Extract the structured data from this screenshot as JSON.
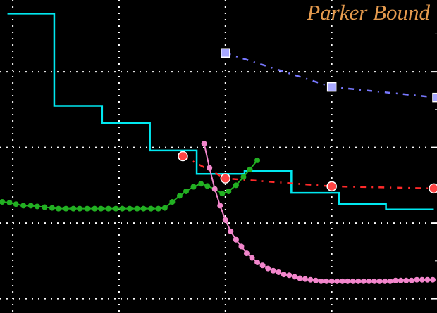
{
  "chart_data": {
    "type": "line",
    "title": "Parker Bound",
    "xlabel": "",
    "ylabel": "",
    "xlim": [
      -0.12,
      3.99
    ],
    "ylim": [
      -0.19,
      3.95
    ],
    "grid": true,
    "grid_x": [
      0,
      1,
      2,
      3
    ],
    "grid_y": [
      0,
      1,
      2,
      3
    ],
    "colors": {
      "background": "#000000",
      "grid": "#ffffff",
      "title": "#e49a4e"
    },
    "series": [
      {
        "style": "step",
        "color": "#00e8f0",
        "x_edges": [
          -0.05,
          0.39,
          0.84,
          1.29,
          1.73,
          2.18,
          2.62,
          3.07,
          3.51,
          3.96
        ],
        "levels": [
          3.77,
          2.55,
          2.32,
          1.96,
          1.65,
          1.69,
          1.4,
          1.25,
          1.18
        ]
      },
      {
        "style": "dashdot",
        "marker": "square",
        "color": "#7878ff",
        "marker_color": "#a8a8ff",
        "x": [
          2.0,
          3.0,
          3.99
        ],
        "y": [
          3.25,
          2.8,
          2.66
        ]
      },
      {
        "style": "dashdot",
        "marker": "circle",
        "color": "#ff2a2a",
        "marker_color": "#ff4444",
        "x": [
          1.6,
          2.0,
          3.0,
          3.96
        ],
        "y": [
          1.885,
          1.59,
          1.486,
          1.458
        ]
      },
      {
        "style": "solid",
        "marker": "dot",
        "color": "#22b022",
        "x": [
          -0.1,
          -0.03,
          0.03,
          0.1,
          0.17,
          0.23,
          0.3,
          0.37,
          0.43,
          0.5,
          0.57,
          0.63,
          0.7,
          0.77,
          0.83,
          0.9,
          0.97,
          1.03,
          1.1,
          1.17,
          1.23,
          1.3,
          1.37,
          1.43,
          1.5,
          1.57,
          1.63,
          1.7,
          1.77,
          1.83,
          1.9,
          1.97,
          2.03,
          2.1,
          2.17,
          2.23,
          2.3
        ],
        "y": [
          1.28,
          1.27,
          1.25,
          1.23,
          1.23,
          1.22,
          1.21,
          1.2,
          1.19,
          1.19,
          1.19,
          1.19,
          1.19,
          1.19,
          1.19,
          1.19,
          1.19,
          1.19,
          1.19,
          1.19,
          1.19,
          1.19,
          1.19,
          1.2,
          1.28,
          1.36,
          1.42,
          1.48,
          1.52,
          1.49,
          1.45,
          1.39,
          1.42,
          1.5,
          1.61,
          1.71,
          1.83
        ]
      },
      {
        "style": "solid",
        "marker": "dot",
        "color": "#f286cc",
        "x": [
          1.8,
          1.85,
          1.9,
          1.95,
          2.0,
          2.05,
          2.1,
          2.15,
          2.2,
          2.25,
          2.3,
          2.35,
          2.4,
          2.45,
          2.5,
          2.55,
          2.6,
          2.65,
          2.7,
          2.75,
          2.8,
          2.85,
          2.9,
          2.95,
          3.0,
          3.05,
          3.1,
          3.15,
          3.2,
          3.25,
          3.3,
          3.35,
          3.4,
          3.45,
          3.5,
          3.55,
          3.6,
          3.65,
          3.7,
          3.75,
          3.8,
          3.85,
          3.9,
          3.95
        ],
        "y": [
          2.05,
          1.73,
          1.45,
          1.23,
          1.04,
          0.89,
          0.78,
          0.69,
          0.6,
          0.54,
          0.48,
          0.44,
          0.4,
          0.37,
          0.35,
          0.32,
          0.31,
          0.29,
          0.27,
          0.26,
          0.25,
          0.24,
          0.23,
          0.23,
          0.23,
          0.23,
          0.23,
          0.23,
          0.23,
          0.23,
          0.23,
          0.23,
          0.23,
          0.23,
          0.23,
          0.23,
          0.24,
          0.24,
          0.24,
          0.24,
          0.25,
          0.25,
          0.25,
          0.25
        ]
      }
    ]
  }
}
